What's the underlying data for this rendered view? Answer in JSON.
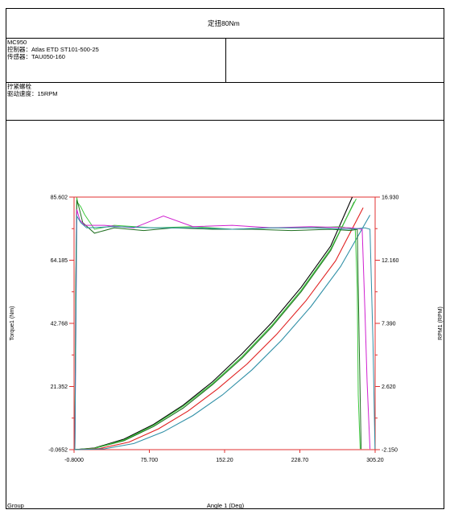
{
  "report": {
    "title": "定扭80Nm",
    "model": "MC950",
    "controller": "控制器：Atlas ETD ST101-500-25",
    "sensor": "传感器：TAU050-160",
    "step": "拧紧螺栓",
    "speed": "驱动速度：15RPM",
    "footer_left": "Group"
  },
  "colors": {
    "black": "#000000",
    "red": "#e02020",
    "teal": "#2f8fa6",
    "dark_green": "#1e6e1e",
    "green": "#3ec83e",
    "magenta": "#d020d0",
    "axis_red": "#e03030"
  },
  "chart_data": {
    "type": "line",
    "xlabel": "Angle 1 (Deg)",
    "ylabel_left": "Torque1 (Nm)",
    "ylabel_right": "RPM1 (RPM)",
    "xlim": [
      -0.8,
      305.2
    ],
    "ylim_left": [
      -0.0652,
      85.602
    ],
    "ylim_right": [
      -2.15,
      16.93
    ],
    "x_ticks": [
      "-0.8000",
      "75.700",
      "152.20",
      "228.70",
      "305.20"
    ],
    "y_ticks_left": [
      "-0.0652",
      "21.352",
      "42.768",
      "64.185",
      "85.602"
    ],
    "y_ticks_right": [
      "-2.150",
      "2.620",
      "7.390",
      "12.160",
      "16.930"
    ],
    "grid": false,
    "torque_series": [
      {
        "color": "#000000",
        "x": [
          -0.8,
          20,
          50,
          80,
          110,
          140,
          170,
          200,
          230,
          260,
          282
        ],
        "y": [
          -0.07,
          0.5,
          3.5,
          8.5,
          15,
          23,
          32.5,
          43,
          55,
          69,
          85.6
        ]
      },
      {
        "color": "#1e6e1e",
        "x": [
          -0.8,
          20,
          50,
          80,
          110,
          140,
          170,
          200,
          230,
          260,
          284
        ],
        "y": [
          -0.07,
          0.4,
          3,
          7.8,
          14,
          22,
          31,
          41.5,
          53.5,
          67.5,
          84
        ]
      },
      {
        "color": "#3ec83e",
        "x": [
          -0.8,
          20,
          50,
          80,
          110,
          140,
          170,
          200,
          230,
          260,
          286
        ],
        "y": [
          -0.07,
          0.4,
          3.2,
          8.2,
          14.6,
          22.4,
          31.5,
          42,
          54,
          68,
          85
        ]
      },
      {
        "color": "#e02020",
        "x": [
          -0.8,
          25,
          55,
          85,
          115,
          145,
          175,
          205,
          235,
          265,
          293
        ],
        "y": [
          -0.07,
          0.3,
          2.5,
          7,
          13,
          20.5,
          29,
          39,
          50.5,
          64,
          82
        ]
      },
      {
        "color": "#2f8fa6",
        "x": [
          -0.8,
          30,
          60,
          90,
          120,
          150,
          180,
          210,
          240,
          270,
          300
        ],
        "y": [
          -0.07,
          0.2,
          2,
          6,
          11.5,
          18.5,
          27,
          37,
          48.5,
          62,
          79.5
        ]
      }
    ],
    "rpm_series": [
      {
        "color": "#3ec83e",
        "x": [
          0,
          1,
          2,
          3,
          6,
          10,
          20,
          40,
          80,
          120,
          160,
          200,
          240,
          270,
          285,
          287,
          288,
          290
        ],
        "y": [
          -2.1,
          10,
          16.9,
          16.5,
          16.2,
          15.6,
          14.5,
          14.8,
          14.6,
          14.7,
          14.5,
          14.6,
          14.6,
          14.7,
          14.5,
          10,
          2,
          -2.1
        ]
      },
      {
        "color": "#1e6e1e",
        "x": [
          0,
          1,
          2,
          4,
          8,
          20,
          40,
          70,
          100,
          140,
          180,
          220,
          260,
          280,
          287,
          289,
          291
        ],
        "y": [
          -2.1,
          11,
          16.7,
          16.2,
          15,
          14.2,
          14.6,
          14.4,
          14.6,
          14.5,
          14.5,
          14.4,
          14.5,
          14.4,
          14.5,
          6,
          -2.1
        ]
      },
      {
        "color": "#d020d0",
        "x": [
          0,
          2,
          5,
          10,
          30,
          60,
          90,
          120,
          160,
          200,
          240,
          280,
          292,
          295,
          297,
          300
        ],
        "y": [
          -2.1,
          16,
          15.2,
          14.8,
          14.8,
          14.6,
          15.5,
          14.7,
          14.8,
          14.6,
          14.7,
          14.6,
          14.5,
          8,
          3,
          -2.1
        ]
      },
      {
        "color": "#2f8fa6",
        "x": [
          0,
          2,
          6,
          12,
          40,
          80,
          120,
          160,
          200,
          240,
          280,
          295,
          300,
          303,
          305
        ],
        "y": [
          -2.1,
          15.5,
          15,
          14.6,
          14.7,
          14.6,
          14.6,
          14.5,
          14.6,
          14.6,
          14.5,
          14.6,
          14.5,
          6,
          -2.1
        ]
      }
    ]
  }
}
